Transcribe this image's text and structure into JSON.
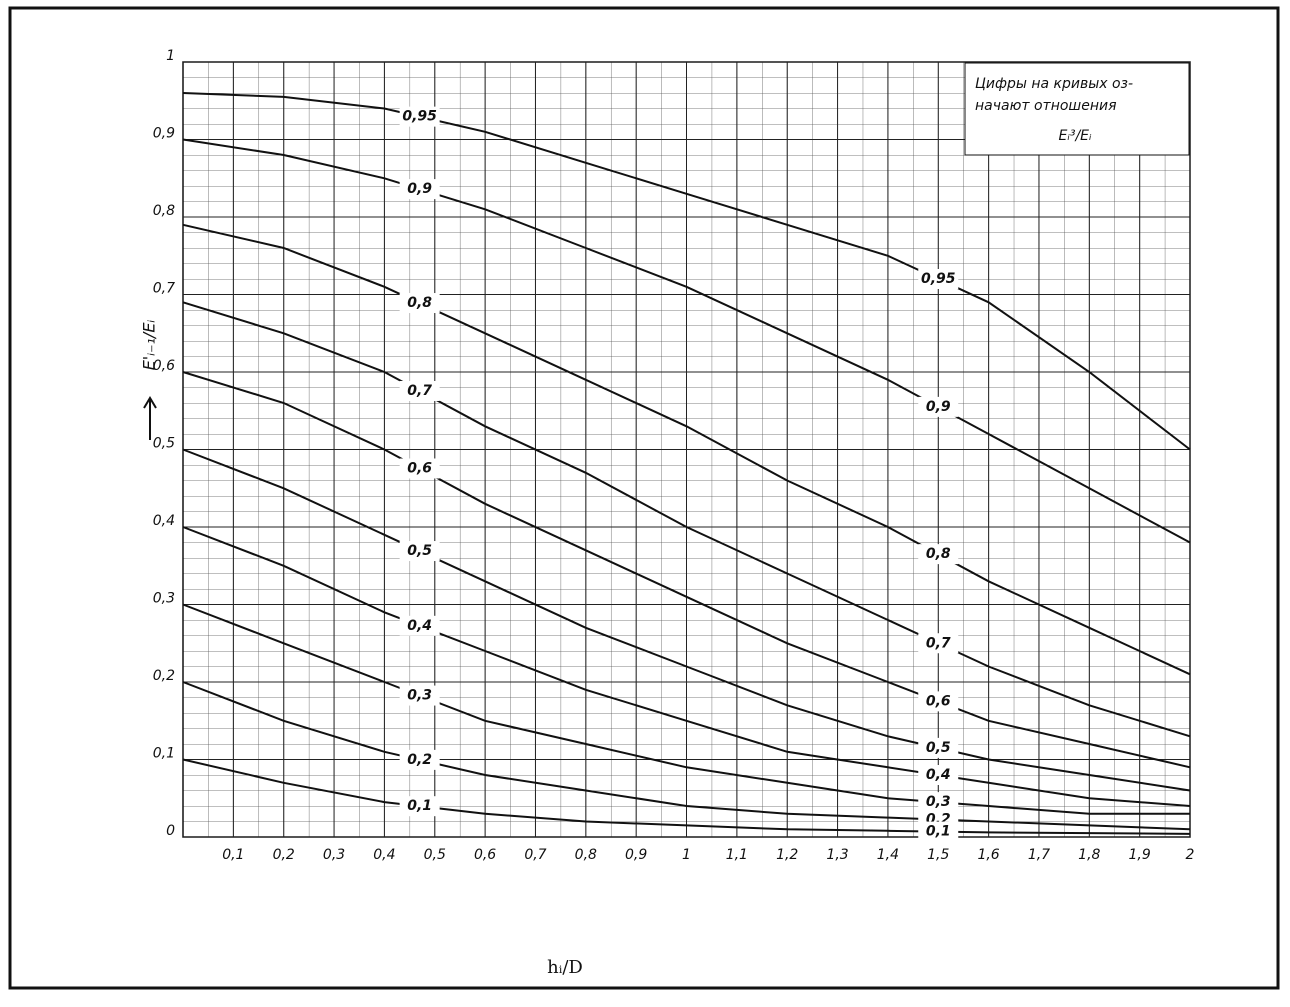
{
  "chart_data": {
    "type": "line",
    "x_label": "hᵢ/D",
    "y_label": "E'ᵢ₋₁/Eᵢ",
    "annotation": [
      "Цифры на кривых оз-",
      "начают отношения",
      "Eᵢ³/Eᵢ"
    ],
    "xlim": [
      0,
      2
    ],
    "ylim": [
      0,
      1
    ],
    "xticks": [
      {
        "value": 0.1,
        "label": "0,1"
      },
      {
        "value": 0.2,
        "label": "0,2"
      },
      {
        "value": 0.3,
        "label": "0,3"
      },
      {
        "value": 0.4,
        "label": "0,4"
      },
      {
        "value": 0.5,
        "label": "0,5"
      },
      {
        "value": 0.6,
        "label": "0,6"
      },
      {
        "value": 0.7,
        "label": "0,7"
      },
      {
        "value": 0.8,
        "label": "0,8"
      },
      {
        "value": 0.9,
        "label": "0,9"
      },
      1,
      {
        "value": 1.1,
        "label": "1,1"
      },
      {
        "value": 1.2,
        "label": "1,2"
      },
      {
        "value": 1.3,
        "label": "1,3"
      },
      {
        "value": 1.4,
        "label": "1,4"
      },
      {
        "value": 1.5,
        "label": "1,5"
      },
      {
        "value": 1.6,
        "label": "1,6"
      },
      {
        "value": 1.7,
        "label": "1,7"
      },
      {
        "value": 1.8,
        "label": "1,8"
      },
      {
        "value": 1.9,
        "label": "1,9"
      },
      2
    ],
    "yticks": [
      0,
      {
        "value": 0.1,
        "label": "0,1"
      },
      {
        "value": 0.2,
        "label": "0,2"
      },
      {
        "value": 0.3,
        "label": "0,3"
      },
      {
        "value": 0.4,
        "label": "0,4"
      },
      {
        "value": 0.5,
        "label": "0,5"
      },
      {
        "value": 0.6,
        "label": "0,6"
      },
      {
        "value": 0.7,
        "label": "0,7"
      },
      {
        "value": 0.8,
        "label": "0,8"
      },
      {
        "value": 0.9,
        "label": "0,9"
      },
      1
    ],
    "grid": true,
    "x": [
      0,
      0.2,
      0.4,
      0.6,
      0.8,
      1,
      1.2,
      1.4,
      1.6,
      1.8,
      2
    ],
    "series": [
      {
        "name": "0,95",
        "color": "#111111",
        "values": [
          0.96,
          0.955,
          0.94,
          0.91,
          0.87,
          0.83,
          0.79,
          0.75,
          0.69,
          0.6,
          0.5
        ]
      },
      {
        "name": "0,9",
        "color": "#111111",
        "values": [
          0.9,
          0.88,
          0.85,
          0.81,
          0.76,
          0.71,
          0.65,
          0.59,
          0.52,
          0.45,
          0.38
        ]
      },
      {
        "name": "0,8",
        "color": "#111111",
        "values": [
          0.79,
          0.76,
          0.71,
          0.65,
          0.59,
          0.53,
          0.46,
          0.4,
          0.33,
          0.27,
          0.21
        ]
      },
      {
        "name": "0,7",
        "color": "#111111",
        "values": [
          0.69,
          0.65,
          0.6,
          0.53,
          0.47,
          0.4,
          0.34,
          0.28,
          0.22,
          0.17,
          0.13
        ]
      },
      {
        "name": "0,6",
        "color": "#111111",
        "values": [
          0.6,
          0.56,
          0.5,
          0.43,
          0.37,
          0.31,
          0.25,
          0.2,
          0.15,
          0.12,
          0.09
        ]
      },
      {
        "name": "0,5",
        "color": "#111111",
        "values": [
          0.5,
          0.45,
          0.39,
          0.33,
          0.27,
          0.22,
          0.17,
          0.13,
          0.1,
          0.08,
          0.06
        ]
      },
      {
        "name": "0,4",
        "color": "#111111",
        "values": [
          0.4,
          0.35,
          0.29,
          0.24,
          0.19,
          0.15,
          0.11,
          0.09,
          0.07,
          0.05,
          0.04
        ]
      },
      {
        "name": "0,3",
        "color": "#111111",
        "values": [
          0.3,
          0.25,
          0.2,
          0.15,
          0.12,
          0.09,
          0.07,
          0.05,
          0.04,
          0.03,
          0.03
        ]
      },
      {
        "name": "0,2",
        "color": "#111111",
        "values": [
          0.2,
          0.15,
          0.11,
          0.08,
          0.06,
          0.04,
          0.03,
          0.025,
          0.02,
          0.015,
          0.01
        ]
      },
      {
        "name": "0,1",
        "color": "#111111",
        "values": [
          0.1,
          0.07,
          0.045,
          0.03,
          0.02,
          0.015,
          0.01,
          0.008,
          0.006,
          0.005,
          0.004
        ]
      }
    ]
  }
}
